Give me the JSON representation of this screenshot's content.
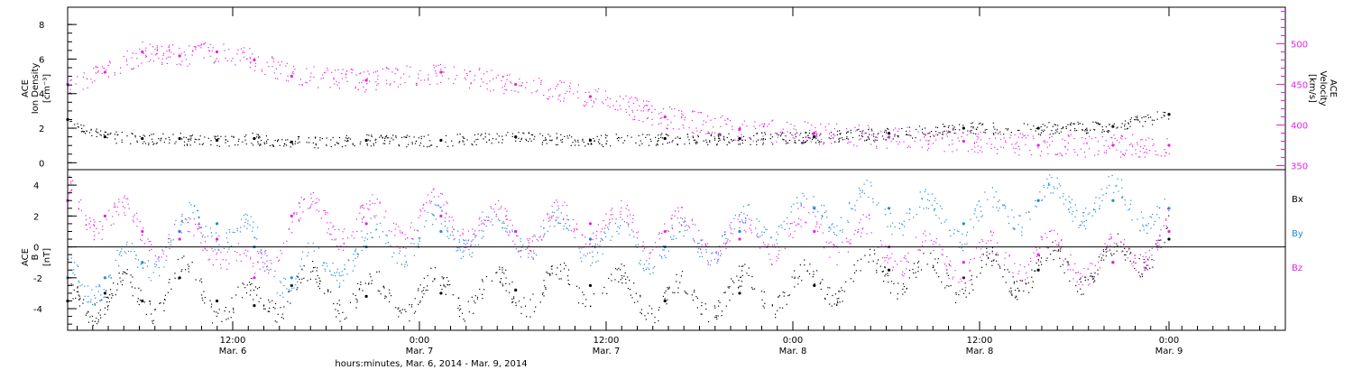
{
  "colors": {
    "black": "#000000",
    "magenta": "#e81ee8",
    "blue": "#1e88e0"
  },
  "chart_data": [
    {
      "type": "scatter",
      "title": "",
      "ylabel": [
        "ACE",
        "Ion Density",
        "[cm⁻³]"
      ],
      "y2label": [
        "ACE",
        "Velocity",
        "[km/s]"
      ],
      "ylim": [
        -0.4,
        9
      ],
      "y2lim": [
        345,
        545
      ],
      "yticks": [
        "0",
        "2",
        "4",
        "6",
        "8"
      ],
      "y2ticks": [
        "350",
        "400",
        "450",
        "500"
      ],
      "series": [
        {
          "axis": "left",
          "color": "#000000",
          "x": [
            0,
            0.1,
            0.2,
            0.3,
            0.4,
            0.5,
            0.6,
            0.8,
            1.0,
            1.2,
            1.4,
            1.6,
            1.8,
            2.0,
            2.2,
            2.4,
            2.6,
            2.8,
            2.95
          ],
          "y": [
            2.5,
            1.5,
            1.4,
            1.4,
            1.3,
            1.4,
            1.2,
            1.3,
            1.3,
            1.5,
            1.3,
            1.4,
            1.4,
            1.5,
            1.7,
            2.0,
            2.0,
            2.1,
            2.8
          ]
        },
        {
          "axis": "right",
          "color": "#e81ee8",
          "x": [
            0,
            0.1,
            0.2,
            0.3,
            0.4,
            0.5,
            0.6,
            0.8,
            1.0,
            1.2,
            1.4,
            1.6,
            1.8,
            2.0,
            2.2,
            2.4,
            2.6,
            2.8,
            2.95
          ],
          "y": [
            450,
            465,
            490,
            485,
            490,
            480,
            460,
            455,
            465,
            450,
            435,
            410,
            395,
            390,
            385,
            380,
            375,
            375,
            375
          ]
        }
      ]
    },
    {
      "type": "scatter",
      "title": "",
      "ylabel": [
        "ACE",
        "B",
        "[nT]"
      ],
      "ylim": [
        -5.4,
        5
      ],
      "yticks": [
        "-4",
        "-2",
        "0",
        "2",
        "4"
      ],
      "legend": [
        "Bx",
        "By",
        "Bz"
      ],
      "series": [
        {
          "name": "Bx",
          "color": "#000000",
          "x": [
            0,
            0.1,
            0.2,
            0.3,
            0.4,
            0.5,
            0.6,
            0.8,
            1.0,
            1.2,
            1.4,
            1.6,
            1.8,
            2.0,
            2.2,
            2.4,
            2.6,
            2.8,
            2.95
          ],
          "y": [
            -3.5,
            -3,
            -3.5,
            -2,
            -3.5,
            -3.8,
            -2.5,
            -3.2,
            -3,
            -2.8,
            -2.5,
            -3.5,
            -3,
            -2.5,
            -1.5,
            -2,
            -1.5,
            -1,
            0.5
          ]
        },
        {
          "name": "By",
          "color": "#1e88e0",
          "x": [
            0,
            0.1,
            0.2,
            0.3,
            0.4,
            0.5,
            0.6,
            0.8,
            1.0,
            1.2,
            1.4,
            1.6,
            1.8,
            2.0,
            2.2,
            2.4,
            2.6,
            2.8,
            2.95
          ],
          "y": [
            -2,
            -2,
            -1,
            1,
            1.5,
            0,
            -2,
            0,
            1,
            1,
            0.5,
            0,
            1,
            2.5,
            2.5,
            1.5,
            3,
            3,
            2.5
          ]
        },
        {
          "name": "Bz",
          "color": "#e81ee8",
          "x": [
            0,
            0.1,
            0.2,
            0.3,
            0.4,
            0.5,
            0.6,
            0.8,
            1.0,
            1.2,
            1.4,
            1.6,
            1.8,
            2.0,
            2.2,
            2.4,
            2.6,
            2.8,
            2.95
          ],
          "y": [
            3,
            2,
            1,
            0.5,
            0.5,
            -2,
            2,
            1.5,
            2,
            1,
            1.5,
            1,
            0.5,
            1,
            0,
            -1,
            -0.5,
            -1,
            1
          ]
        }
      ]
    }
  ],
  "x_axis": {
    "ticks": [
      {
        "time": "12:00",
        "date": "Mar. 6"
      },
      {
        "time": "0:00",
        "date": "Mar. 7"
      },
      {
        "time": "12:00",
        "date": "Mar. 7"
      },
      {
        "time": "0:00",
        "date": "Mar. 8"
      },
      {
        "time": "12:00",
        "date": "Mar. 8"
      },
      {
        "time": "0:00",
        "date": "Mar. 9"
      }
    ],
    "label": "hours:minutes, Mar.  6, 2014 - Mar.  9, 2014"
  }
}
